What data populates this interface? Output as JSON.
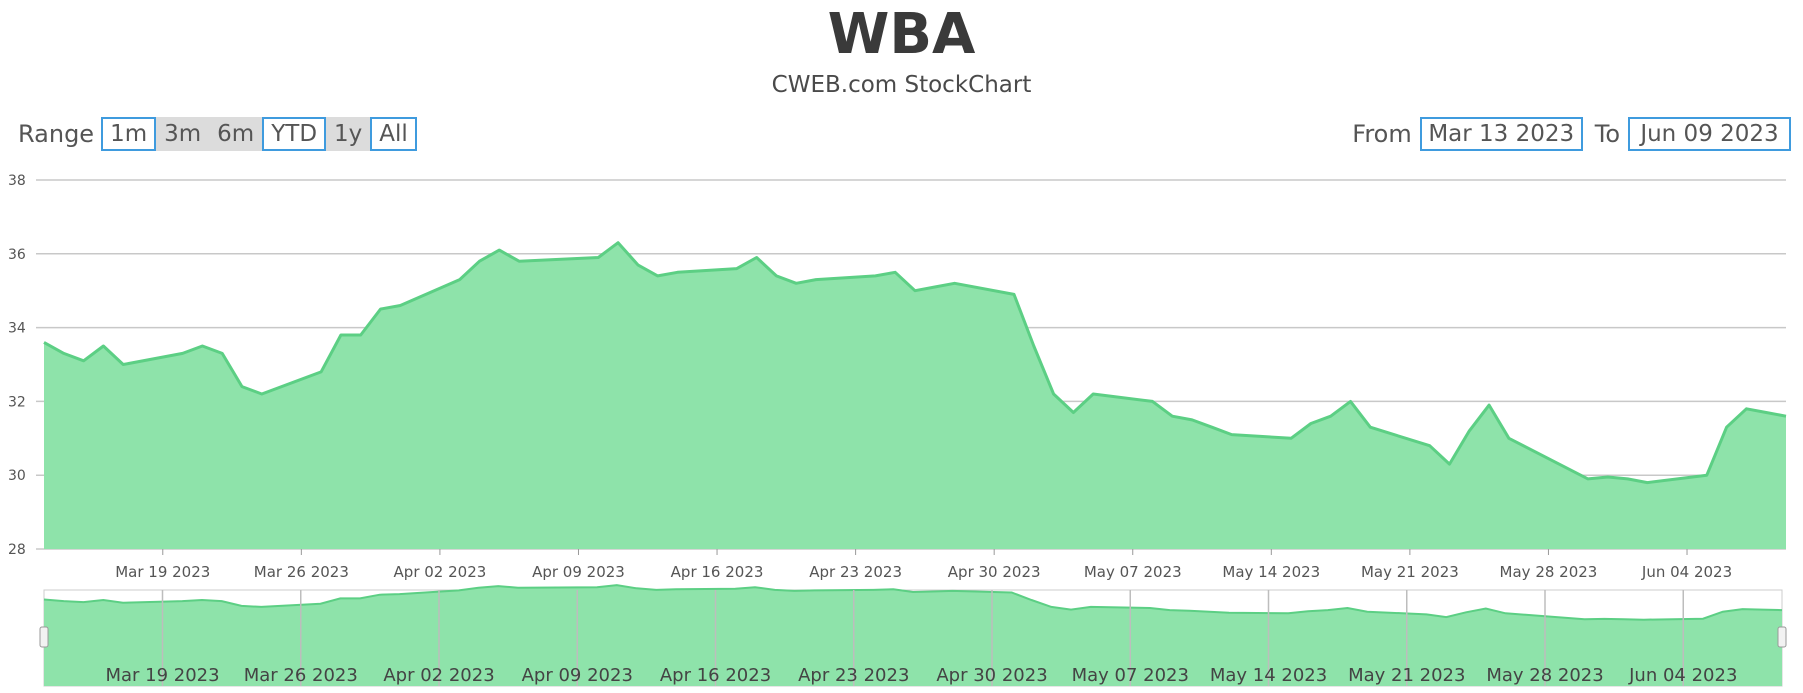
{
  "title": "WBA",
  "subtitle": "CWEB.com StockChart",
  "range_selector": {
    "label": "Range",
    "buttons": [
      {
        "label": "1m",
        "boxed": true
      },
      {
        "label": "3m",
        "boxed": false
      },
      {
        "label": "6m",
        "boxed": false
      },
      {
        "label": "YTD",
        "boxed": true
      },
      {
        "label": "1y",
        "boxed": false
      },
      {
        "label": "All",
        "boxed": true
      }
    ]
  },
  "date_range": {
    "from_label": "From",
    "from_value": "Mar 13 2023",
    "to_label": "To",
    "to_value": "Jun 09 2023"
  },
  "colors": {
    "area_fill": "#8ee3aa",
    "area_line": "#5ccf84",
    "gridline": "#c8c8c8",
    "accent": "#3f9bde"
  },
  "chart_data": {
    "type": "area",
    "ylim": [
      28,
      38
    ],
    "yticks": [
      28,
      30,
      32,
      34,
      36,
      38
    ],
    "xlim": [
      "2023-03-13",
      "2023-06-09"
    ],
    "xticks": [
      {
        "date": "2023-03-19",
        "label": "Mar 19 2023"
      },
      {
        "date": "2023-03-26",
        "label": "Mar 26 2023"
      },
      {
        "date": "2023-04-02",
        "label": "Apr 02 2023"
      },
      {
        "date": "2023-04-09",
        "label": "Apr 09 2023"
      },
      {
        "date": "2023-04-16",
        "label": "Apr 16 2023"
      },
      {
        "date": "2023-04-23",
        "label": "Apr 23 2023"
      },
      {
        "date": "2023-04-30",
        "label": "Apr 30 2023"
      },
      {
        "date": "2023-05-07",
        "label": "May 07 2023"
      },
      {
        "date": "2023-05-14",
        "label": "May 14 2023"
      },
      {
        "date": "2023-05-21",
        "label": "May 21 2023"
      },
      {
        "date": "2023-05-28",
        "label": "May 28 2023"
      },
      {
        "date": "2023-06-04",
        "label": "Jun 04 2023"
      }
    ],
    "grid": true,
    "navigator": true,
    "series": [
      {
        "x": [
          "2023-03-13",
          "2023-03-14",
          "2023-03-15",
          "2023-03-16",
          "2023-03-17",
          "2023-03-20",
          "2023-03-21",
          "2023-03-22",
          "2023-03-23",
          "2023-03-24",
          "2023-03-27",
          "2023-03-28",
          "2023-03-29",
          "2023-03-30",
          "2023-03-31",
          "2023-04-03",
          "2023-04-04",
          "2023-04-05",
          "2023-04-06",
          "2023-04-10",
          "2023-04-11",
          "2023-04-12",
          "2023-04-13",
          "2023-04-14",
          "2023-04-17",
          "2023-04-18",
          "2023-04-19",
          "2023-04-20",
          "2023-04-21",
          "2023-04-24",
          "2023-04-25",
          "2023-04-26",
          "2023-04-27",
          "2023-04-28",
          "2023-05-01",
          "2023-05-02",
          "2023-05-03",
          "2023-05-04",
          "2023-05-05",
          "2023-05-08",
          "2023-05-09",
          "2023-05-10",
          "2023-05-11",
          "2023-05-12",
          "2023-05-15",
          "2023-05-16",
          "2023-05-17",
          "2023-05-18",
          "2023-05-19",
          "2023-05-22",
          "2023-05-23",
          "2023-05-24",
          "2023-05-25",
          "2023-05-26",
          "2023-05-30",
          "2023-05-31",
          "2023-06-01",
          "2023-06-02",
          "2023-06-05",
          "2023-06-06",
          "2023-06-07",
          "2023-06-08",
          "2023-06-09"
        ],
        "y": [
          33.6,
          33.3,
          33.1,
          33.5,
          33.0,
          33.3,
          33.5,
          33.3,
          32.4,
          32.2,
          32.8,
          33.8,
          33.8,
          34.5,
          34.6,
          35.3,
          35.8,
          36.1,
          35.8,
          35.9,
          36.3,
          35.7,
          35.4,
          35.5,
          35.6,
          35.9,
          35.4,
          35.2,
          35.3,
          35.4,
          35.5,
          35.0,
          35.1,
          35.2,
          34.9,
          33.5,
          32.2,
          31.7,
          32.2,
          32.0,
          31.6,
          31.5,
          31.3,
          31.1,
          31.0,
          31.4,
          31.6,
          32.0,
          31.3,
          30.8,
          30.3,
          31.2,
          31.9,
          31.0,
          29.9,
          29.95,
          29.9,
          29.8,
          30.0,
          31.3,
          31.8,
          31.7,
          31.6
        ]
      }
    ]
  }
}
